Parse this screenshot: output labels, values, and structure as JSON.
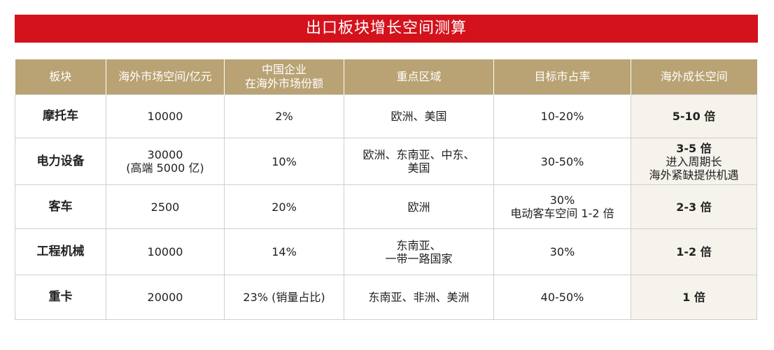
{
  "title": "出口板块增长空间测算",
  "table": {
    "headers": {
      "sector": "板块",
      "market": "海外市场空间/亿元",
      "share_line1": "中国企业",
      "share_line2": "在海外市场份额",
      "region": "重点区域",
      "target": "目标市占率",
      "growth": "海外成长空间"
    },
    "rows": [
      {
        "sector": "摩托车",
        "market_line1": "10000",
        "market_line2": "",
        "share": "2%",
        "region_line1": "欧洲、美国",
        "region_line2": "",
        "target_line1": "10-20%",
        "target_line2": "",
        "growth": "5-10 倍",
        "growth_note1": "",
        "growth_note2": ""
      },
      {
        "sector": "电力设备",
        "market_line1": "30000",
        "market_line2": "(高端 5000 亿)",
        "share": "10%",
        "region_line1": "欧洲、东南亚、中东、",
        "region_line2": "美国",
        "target_line1": "30-50%",
        "target_line2": "",
        "growth": "3-5 倍",
        "growth_note1": "进入周期长",
        "growth_note2": "海外紧缺提供机遇"
      },
      {
        "sector": "客车",
        "market_line1": "2500",
        "market_line2": "",
        "share": "20%",
        "region_line1": "欧洲",
        "region_line2": "",
        "target_line1": "30%",
        "target_line2": "电动客车空间 1-2 倍",
        "growth": "2-3 倍",
        "growth_note1": "",
        "growth_note2": ""
      },
      {
        "sector": "工程机械",
        "market_line1": "10000",
        "market_line2": "",
        "share": "14%",
        "region_line1": "东南亚、",
        "region_line2": "一带一路国家",
        "target_line1": "30%",
        "target_line2": "",
        "growth": "1-2 倍",
        "growth_note1": "",
        "growth_note2": ""
      },
      {
        "sector": "重卡",
        "market_line1": "20000",
        "market_line2": "",
        "share": "23% (销量占比)",
        "region_line1": "东南亚、非洲、美洲",
        "region_line2": "",
        "target_line1": "40-50%",
        "target_line2": "",
        "growth": "1 倍",
        "growth_note1": "",
        "growth_note2": ""
      }
    ]
  },
  "colors": {
    "title_bar": "#d3121c",
    "header_bg": "#b9a273",
    "growth_bg": "#f6f3ec"
  }
}
